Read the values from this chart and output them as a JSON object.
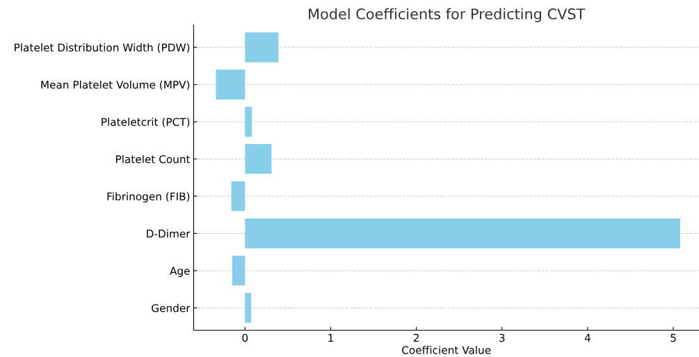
{
  "chart_data": {
    "type": "bar",
    "orientation": "horizontal",
    "title": "Model Coefficients for Predicting CVST",
    "xlabel": "Coefficient Value",
    "categories": [
      "Platelet Distribution Width (PDW)",
      "Mean Platelet Volume (MPV)",
      "Plateletcrit (PCT)",
      "Platelet Count",
      "Fibrinogen (FIB)",
      "D-Dimer",
      "Age",
      "Gender"
    ],
    "values": [
      0.39,
      -0.34,
      0.08,
      0.31,
      -0.16,
      5.08,
      -0.15,
      0.07
    ],
    "color": "#87ceeb",
    "xlim": [
      -0.6,
      5.3
    ],
    "xticks": [
      0,
      1,
      2,
      3,
      4,
      5
    ],
    "grid": "y",
    "legend": false
  }
}
